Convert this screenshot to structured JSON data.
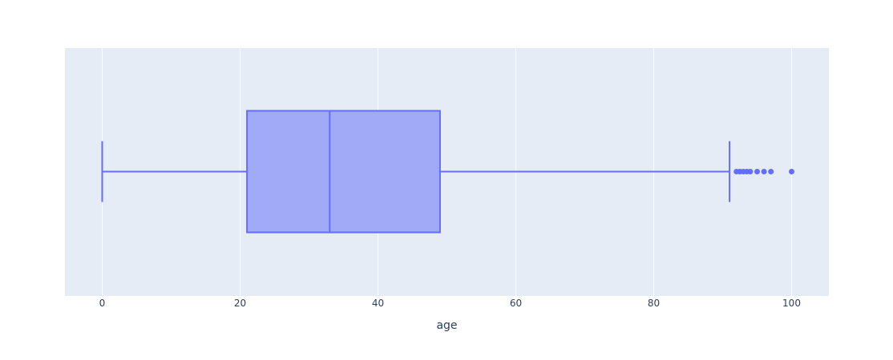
{
  "chart_data": {
    "type": "box",
    "orientation": "horizontal",
    "title": "",
    "xlabel": "age",
    "ylabel": "",
    "xlim": [
      -5.5,
      105.5
    ],
    "x_ticks": [
      0,
      20,
      40,
      60,
      80,
      100
    ],
    "x_tick_labels": [
      "0",
      "20",
      "40",
      "60",
      "80",
      "100"
    ],
    "grid": true,
    "series": [
      {
        "name": "age",
        "lower_whisker": 0,
        "q1": 21,
        "median": 33,
        "q3": 49,
        "upper_whisker": 91,
        "outliers": [
          92,
          92.5,
          93,
          93.5,
          94,
          95,
          96,
          97,
          100
        ]
      }
    ],
    "colors": {
      "plot_bg": "#e5ecf6",
      "grid": "#ffffff",
      "box_line": "#636efa",
      "box_fill": "#a0aaf6",
      "text": "#2a3f5f"
    }
  }
}
